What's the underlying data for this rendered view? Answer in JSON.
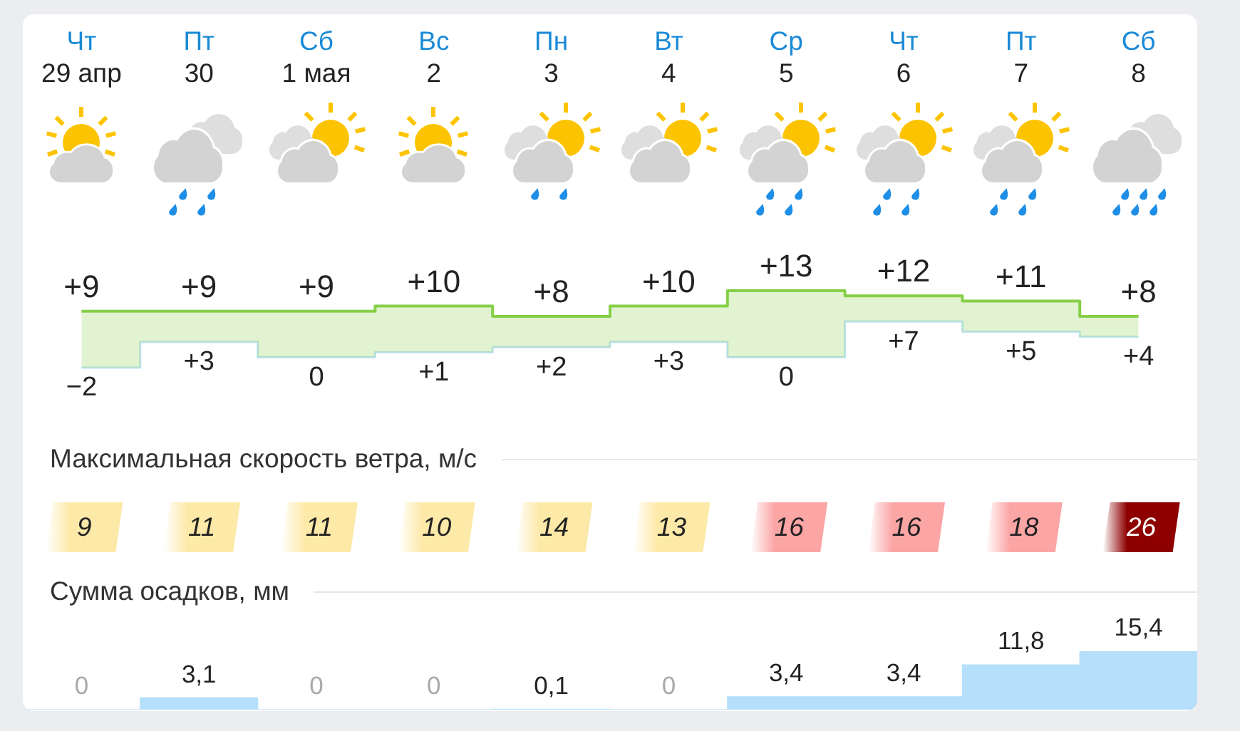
{
  "chart_data": [
    {
      "type": "step",
      "categories": [
        "Чт\n29 апр",
        "Пт\n30",
        "Сб\n1 мая",
        "Вс\n2",
        "Пн\n3",
        "Вт\n4",
        "Ср\n5",
        "Чт\n6",
        "Пт\n7",
        "Сб\n8"
      ],
      "tick_labels": "x",
      "series": [
        {
          "color": "#86cf48",
          "values": [
            9,
            9,
            9,
            10,
            8,
            10,
            13,
            12,
            11,
            8
          ],
          "value_labels": [
            "+9",
            "+9",
            "+9",
            "+10",
            "+8",
            "+10",
            "+13",
            "+12",
            "+11",
            "+8"
          ]
        },
        {
          "color": "#bfe3f3",
          "values": [
            -2,
            3,
            0,
            1,
            2,
            3,
            0,
            7,
            5,
            4
          ],
          "value_labels": [
            "−2",
            "+3",
            "0",
            "+1",
            "+2",
            "+3",
            "0",
            "+7",
            "+5",
            "+4"
          ]
        }
      ]
    },
    {
      "type": "other",
      "title": "Максимальная скорость ветра, м/с",
      "values": [
        9,
        11,
        11,
        10,
        14,
        13,
        16,
        16,
        18,
        26
      ],
      "colors": [
        "#fde9a8",
        "#fde9a8",
        "#fde9a8",
        "#fde9a8",
        "#fde9a8",
        "#fde9a8",
        "#fba5a5",
        "#fba5a5",
        "#fba5a5",
        "#8e0000"
      ],
      "data_labels": true
    },
    {
      "type": "bar",
      "title": "Сумма осадков, мм",
      "categories": [
        null,
        null,
        null,
        null,
        null,
        null,
        null,
        null,
        null,
        null
      ],
      "tick_labels": false,
      "values": [
        0,
        3.1,
        0,
        0,
        0.1,
        0,
        3.4,
        3.4,
        11.8,
        15.4
      ],
      "color": "#b5dffa",
      "value_labels": [
        "0",
        "3,1",
        "0",
        "0",
        "0,1",
        "0",
        "3,4",
        "3,4",
        "11,8",
        "15,4"
      ]
    }
  ]
}
